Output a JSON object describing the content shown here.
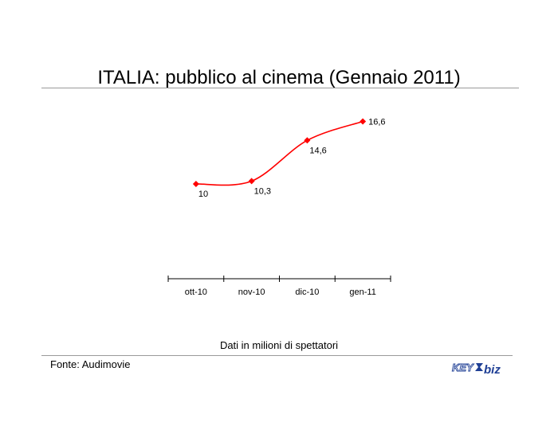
{
  "header": {
    "title": "ITALIA: pubblico al cinema (Gennaio 2011)"
  },
  "chart_data": {
    "type": "line",
    "title": "ITALIA: pubblico al cinema (Gennaio 2011)",
    "xlabel": "",
    "ylabel": "",
    "categories": [
      "ott-10",
      "nov-10",
      "dic-10",
      "gen-11"
    ],
    "values": [
      10,
      10.3,
      14.6,
      16.6
    ],
    "data_labels": [
      "10",
      "10,3",
      "14,6",
      "16,6"
    ],
    "ylim": [
      0,
      20
    ],
    "grid": false,
    "legend": "none",
    "line_style": "smooth",
    "series_color": "#ff0000",
    "marker": "diamond"
  },
  "footer": {
    "note": "Dati in milioni di spettatori",
    "source": "Fonte: Audimovie",
    "logo": {
      "text_left": "KEY",
      "text_right": "biz"
    }
  },
  "colors": {
    "rule": "#9a9a9a",
    "logo_blue": "#1f3f95"
  }
}
